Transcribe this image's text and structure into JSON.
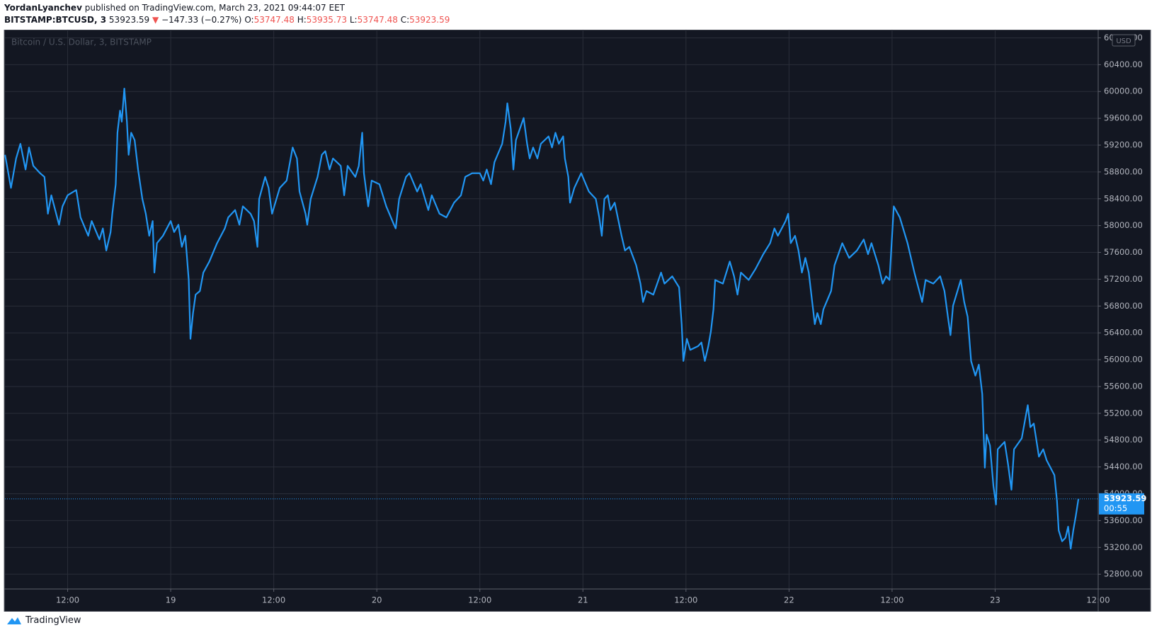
{
  "header": {
    "author": "YordanLyanchev",
    "published": "published on TradingView.com, March 23, 2021 09:44:07 EET"
  },
  "chart_data": {
    "type": "line",
    "symbol": "BITSTAMP:BTCUSD, 3",
    "change": "−147.33 (−0.27%)",
    "ohlc": [
      {
        "label": "O:",
        "value": "53747.48"
      },
      {
        "label": "H:",
        "value": "53935.73"
      },
      {
        "label": "L:",
        "value": "53747.48"
      },
      {
        "label": "C:",
        "value": "53923.59"
      }
    ],
    "watermark": "Bitcoin / U.S. Dollar, 3, BITSTAMP",
    "currency": "USD",
    "last_price": 53923.59,
    "countdown": "00:55",
    "color": "#2196f3",
    "grid": true,
    "xlim": [
      4.7,
      132
    ],
    "xticks": [
      {
        "value": 12,
        "label": "12:00"
      },
      {
        "value": 24,
        "label": "19"
      },
      {
        "value": 36,
        "label": "12:00"
      },
      {
        "value": 48,
        "label": "20"
      },
      {
        "value": 60,
        "label": "12:00"
      },
      {
        "value": 72,
        "label": "21"
      },
      {
        "value": 84,
        "label": "12:00"
      },
      {
        "value": 96,
        "label": "22"
      },
      {
        "value": 108,
        "label": "12:00"
      },
      {
        "value": 120,
        "label": "23"
      },
      {
        "value": 132,
        "label": "12:00"
      }
    ],
    "ylim": [
      52580,
      60900
    ],
    "yticks": [
      {
        "value": 52800,
        "label": "52800.00"
      },
      {
        "value": 53200,
        "label": "53200.00"
      },
      {
        "value": 53600,
        "label": "53600.00"
      },
      {
        "value": 54000,
        "label": "54000.00"
      },
      {
        "value": 54400,
        "label": "54400.00"
      },
      {
        "value": 54800,
        "label": "54800.00"
      },
      {
        "value": 55200,
        "label": "55200.00"
      },
      {
        "value": 55600,
        "label": "55600.00"
      },
      {
        "value": 56000,
        "label": "56000.00"
      },
      {
        "value": 56400,
        "label": "56400.00"
      },
      {
        "value": 56800,
        "label": "56800.00"
      },
      {
        "value": 57200,
        "label": "57200.00"
      },
      {
        "value": 57600,
        "label": "57600.00"
      },
      {
        "value": 58000,
        "label": "58000.00"
      },
      {
        "value": 58400,
        "label": "58400.00"
      },
      {
        "value": 58800,
        "label": "58800.00"
      },
      {
        "value": 59200,
        "label": "59200.00"
      },
      {
        "value": 59600,
        "label": "59600.00"
      },
      {
        "value": 60000,
        "label": "60000.00"
      },
      {
        "value": 60400,
        "label": "60400.00"
      },
      {
        "value": 60800,
        "label": "60800.00"
      }
    ],
    "x": [
      4.71,
      5.4,
      6.0,
      6.5,
      7.1,
      7.5,
      8.0,
      8.8,
      9.3,
      9.7,
      10.1,
      11.0,
      11.4,
      12.0,
      13.0,
      13.5,
      14.4,
      14.8,
      15.7,
      16.1,
      16.5,
      17.0,
      17.2,
      17.6,
      17.8,
      18.1,
      18.3,
      18.6,
      18.9,
      19.1,
      19.4,
      19.8,
      20.2,
      20.7,
      21.1,
      21.5,
      21.9,
      22.1,
      22.4,
      23.1,
      24.0,
      24.4,
      24.9,
      25.3,
      25.7,
      26.1,
      26.3,
      26.6,
      26.9,
      27.4,
      27.8,
      28.5,
      29.4,
      30.3,
      30.7,
      31.5,
      32.0,
      32.4,
      33.3,
      33.7,
      34.1,
      34.3,
      35.0,
      35.4,
      35.8,
      36.7,
      37.5,
      38.2,
      38.7,
      39.0,
      39.7,
      39.9,
      40.3,
      41.1,
      41.6,
      42.0,
      42.5,
      42.9,
      43.8,
      44.2,
      44.6,
      45.5,
      45.9,
      46.3,
      46.5,
      47.0,
      47.4,
      48.3,
      49.1,
      50.0,
      50.2,
      50.6,
      51.4,
      51.8,
      52.7,
      53.1,
      54.0,
      54.4,
      55.3,
      56.1,
      57.0,
      57.8,
      58.3,
      59.1,
      60.0,
      60.4,
      60.8,
      61.3,
      61.7,
      62.6,
      63.0,
      63.2,
      63.6,
      63.9,
      64.2,
      65.1,
      65.5,
      65.8,
      66.2,
      66.7,
      67.1,
      68.0,
      68.4,
      68.8,
      69.2,
      69.7,
      69.9,
      70.3,
      70.5,
      71.0,
      71.8,
      72.7,
      73.5,
      73.9,
      74.2,
      74.5,
      74.9,
      75.2,
      75.7,
      76.5,
      76.9,
      77.4,
      78.2,
      78.7,
      79.0,
      79.4,
      80.2,
      81.1,
      81.5,
      82.4,
      83.2,
      83.5,
      83.7,
      84.1,
      84.5,
      85.4,
      85.8,
      86.2,
      86.6,
      86.9,
      87.2,
      87.4,
      88.3,
      89.1,
      89.6,
      90.0,
      90.4,
      91.3,
      92.1,
      93.0,
      93.8,
      94.3,
      94.7,
      95.6,
      95.9,
      96.2,
      96.7,
      97.1,
      97.5,
      97.9,
      98.3,
      98.7,
      99.0,
      99.3,
      99.7,
      100.0,
      100.9,
      101.3,
      102.2,
      103.0,
      103.9,
      104.7,
      105.2,
      105.6,
      106.4,
      106.9,
      107.3,
      107.7,
      108.0,
      108.2,
      108.9,
      109.8,
      110.6,
      111.5,
      111.9,
      112.8,
      113.6,
      114.1,
      114.5,
      114.8,
      115.1,
      116.0,
      116.4,
      116.8,
      117.2,
      117.7,
      118.1,
      118.5,
      118.8,
      119.0,
      119.4,
      119.8,
      120.1,
      120.3,
      121.1,
      121.5,
      121.9,
      122.2,
      123.1,
      123.8,
      124.1,
      124.5,
      125.1,
      125.6,
      126.0,
      126.9,
      127.2,
      127.4,
      127.8,
      128.2,
      128.5,
      128.8,
      129.1,
      129.4,
      129.7
    ],
    "values": [
      59056,
      58562,
      59001,
      59220,
      58836,
      59165,
      58891,
      58781,
      58726,
      58177,
      58452,
      58013,
      58287,
      58452,
      58530,
      58122,
      57848,
      58068,
      57793,
      57958,
      57628,
      57903,
      58177,
      58617,
      59385,
      59715,
      59550,
      60044,
      59550,
      59056,
      59385,
      59275,
      58836,
      58397,
      58177,
      57848,
      58068,
      57299,
      57738,
      57848,
      58068,
      57903,
      58013,
      57683,
      57848,
      57189,
      56311,
      56695,
      56970,
      57024,
      57299,
      57464,
      57738,
      57958,
      58122,
      58232,
      58013,
      58287,
      58177,
      58068,
      57683,
      58397,
      58726,
      58562,
      58177,
      58562,
      58671,
      59165,
      59001,
      58507,
      58177,
      58013,
      58397,
      58726,
      59056,
      59110,
      58836,
      59001,
      58891,
      58452,
      58891,
      58726,
      58891,
      59385,
      58781,
      58287,
      58671,
      58617,
      58287,
      58013,
      57958,
      58397,
      58726,
      58781,
      58507,
      58617,
      58232,
      58452,
      58177,
      58122,
      58342,
      58452,
      58726,
      58781,
      58781,
      58671,
      58836,
      58617,
      58946,
      59220,
      59550,
      59824,
      59440,
      58836,
      59275,
      59605,
      59220,
      59001,
      59165,
      59001,
      59220,
      59330,
      59165,
      59385,
      59220,
      59330,
      59001,
      58726,
      58342,
      58562,
      58781,
      58507,
      58397,
      58122,
      57848,
      58397,
      58452,
      58232,
      58342,
      57848,
      57628,
      57683,
      57409,
      57134,
      56860,
      57024,
      56970,
      57299,
      57134,
      57244,
      57079,
      56530,
      55981,
      56311,
      56146,
      56201,
      56256,
      55981,
      56201,
      56421,
      56750,
      57189,
      57134,
      57464,
      57244,
      56970,
      57299,
      57189,
      57354,
      57573,
      57738,
      57958,
      57848,
      58068,
      58177,
      57738,
      57848,
      57628,
      57299,
      57518,
      57299,
      56860,
      56530,
      56695,
      56530,
      56750,
      57024,
      57409,
      57738,
      57518,
      57628,
      57793,
      57573,
      57738,
      57409,
      57134,
      57244,
      57189,
      57848,
      58287,
      58122,
      57738,
      57299,
      56860,
      57189,
      57134,
      57244,
      57024,
      56640,
      56366,
      56805,
      57189,
      56860,
      56640,
      55981,
      55762,
      55926,
      55487,
      54389,
      54883,
      54719,
      54115,
      53840,
      54664,
      54774,
      54444,
      54060,
      54664,
      54828,
      55322,
      54993,
      55048,
      54554,
      54664,
      54499,
      54279,
      53895,
      53455,
      53291,
      53346,
      53510,
      53181,
      53455,
      53675,
      53923.59
    ]
  },
  "footer": {
    "brand": "TradingView"
  }
}
